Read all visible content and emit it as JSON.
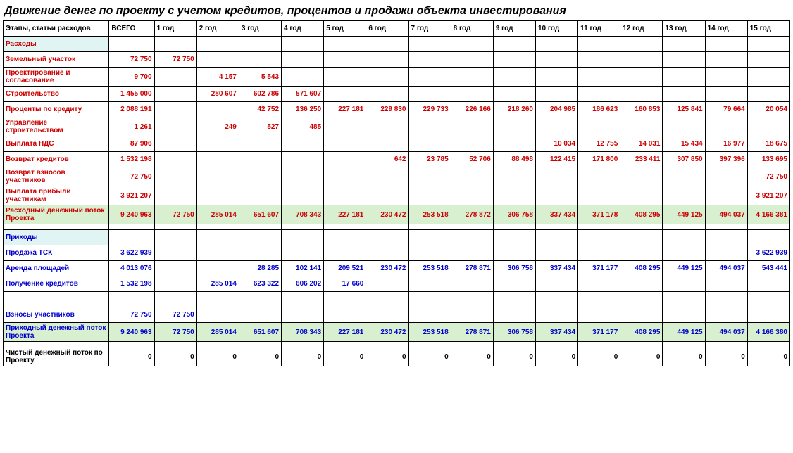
{
  "title": "Движение денег по проекту с учетом кредитов, процентов и продажи объекта инвестирования",
  "headers": [
    "Этапы, статьи расходов",
    "ВСЕГО",
    "1 год",
    "2 год",
    "3 год",
    "4 год",
    "5 год",
    "6 год",
    "7 год",
    "8 год",
    "9 год",
    "10 год",
    "11 год",
    "12 год",
    "13 год",
    "14 год",
    "15 год"
  ],
  "colors": {
    "expense": "#cc0000",
    "income": "#0000cc",
    "net": "#000000",
    "section_bg": "#e0f4f4",
    "total_bg": "#d8f0d0",
    "border": "#000000"
  },
  "rows": [
    {
      "type": "section",
      "color": "red",
      "label": "Расходы",
      "cells": [
        "",
        "",
        "",
        "",
        "",
        "",
        "",
        "",
        "",
        "",
        "",
        "",
        "",
        "",
        "",
        ""
      ]
    },
    {
      "type": "data",
      "color": "red",
      "label": "Земельный участок",
      "cells": [
        "72 750",
        "72 750",
        "",
        "",
        "",
        "",
        "",
        "",
        "",
        "",
        "",
        "",
        "",
        "",
        "",
        ""
      ]
    },
    {
      "type": "data",
      "color": "red",
      "label": "Проектирование и согласование",
      "cells": [
        "9 700",
        "",
        "4 157",
        "5 543",
        "",
        "",
        "",
        "",
        "",
        "",
        "",
        "",
        "",
        "",
        "",
        ""
      ]
    },
    {
      "type": "data",
      "color": "red",
      "label": "Строительство",
      "cells": [
        "1 455 000",
        "",
        "280 607",
        "602 786",
        "571 607",
        "",
        "",
        "",
        "",
        "",
        "",
        "",
        "",
        "",
        "",
        ""
      ]
    },
    {
      "type": "data",
      "color": "red",
      "label": "Проценты по кредиту",
      "cells": [
        "2 088 191",
        "",
        "",
        "42 752",
        "136 250",
        "227 181",
        "229 830",
        "229 733",
        "226 166",
        "218 260",
        "204 985",
        "186 623",
        "160 853",
        "125 841",
        "79 664",
        "20 054"
      ]
    },
    {
      "type": "data",
      "color": "red",
      "label": "Управление строительством",
      "cells": [
        "1 261",
        "",
        "249",
        "527",
        "485",
        "",
        "",
        "",
        "",
        "",
        "",
        "",
        "",
        "",
        "",
        ""
      ]
    },
    {
      "type": "data",
      "color": "red",
      "label": "Выплата НДС",
      "cells": [
        "87 906",
        "",
        "",
        "",
        "",
        "",
        "",
        "",
        "",
        "",
        "10 034",
        "12 755",
        "14 031",
        "15 434",
        "16 977",
        "18 675"
      ]
    },
    {
      "type": "data",
      "color": "red",
      "label": "Возврат кредитов",
      "cells": [
        "1 532 198",
        "",
        "",
        "",
        "",
        "",
        "642",
        "23 785",
        "52 706",
        "88 498",
        "122 415",
        "171 800",
        "233 411",
        "307 850",
        "397 396",
        "133 695"
      ]
    },
    {
      "type": "data",
      "color": "red",
      "label": "Возврат взносов участников",
      "cells": [
        "72 750",
        "",
        "",
        "",
        "",
        "",
        "",
        "",
        "",
        "",
        "",
        "",
        "",
        "",
        "",
        "72 750"
      ]
    },
    {
      "type": "data",
      "color": "red",
      "label": "Выплата прибыли участникам",
      "cells": [
        "3 921 207",
        "",
        "",
        "",
        "",
        "",
        "",
        "",
        "",
        "",
        "",
        "",
        "",
        "",
        "",
        "3 921 207"
      ]
    },
    {
      "type": "total",
      "color": "red",
      "label": "Расходный денежный поток Проекта",
      "cells": [
        "9 240 963",
        "72 750",
        "285 014",
        "651 607",
        "708 343",
        "227 181",
        "230 472",
        "253 518",
        "278 872",
        "306 758",
        "337 434",
        "371 178",
        "408 295",
        "449 125",
        "494 037",
        "4 166 381"
      ]
    },
    {
      "type": "spacer"
    },
    {
      "type": "section",
      "color": "blue",
      "label": "Приходы",
      "cells": [
        "",
        "",
        "",
        "",
        "",
        "",
        "",
        "",
        "",
        "",
        "",
        "",
        "",
        "",
        "",
        ""
      ]
    },
    {
      "type": "data",
      "color": "blue",
      "label": "Продажа  ТСК",
      "cells": [
        "3 622 939",
        "",
        "",
        "",
        "",
        "",
        "",
        "",
        "",
        "",
        "",
        "",
        "",
        "",
        "",
        "3 622 939"
      ]
    },
    {
      "type": "data",
      "color": "blue",
      "label": "Аренда площадей",
      "cells": [
        "4 013 076",
        "",
        "",
        "28 285",
        "102 141",
        "209 521",
        "230 472",
        "253 518",
        "278 871",
        "306 758",
        "337 434",
        "371 177",
        "408 295",
        "449 125",
        "494 037",
        "543 441"
      ]
    },
    {
      "type": "data",
      "color": "blue",
      "label": "Получение кредитов",
      "cells": [
        "1 532 198",
        "",
        "285 014",
        "623 322",
        "606 202",
        "17 660",
        "",
        "",
        "",
        "",
        "",
        "",
        "",
        "",
        "",
        ""
      ]
    },
    {
      "type": "data",
      "color": "blue",
      "label": "",
      "cells": [
        "",
        "",
        "",
        "",
        "",
        "",
        "",
        "",
        "",
        "",
        "",
        "",
        "",
        "",
        "",
        ""
      ]
    },
    {
      "type": "data",
      "color": "blue",
      "label": "Взносы участников",
      "cells": [
        "72 750",
        "72 750",
        "",
        "",
        "",
        "",
        "",
        "",
        "",
        "",
        "",
        "",
        "",
        "",
        "",
        ""
      ]
    },
    {
      "type": "total",
      "color": "blue",
      "label": "Приходный денежный поток Проекта",
      "cells": [
        "9 240 963",
        "72 750",
        "285 014",
        "651 607",
        "708 343",
        "227 181",
        "230 472",
        "253 518",
        "278 871",
        "306 758",
        "337 434",
        "371 177",
        "408 295",
        "449 125",
        "494 037",
        "4 166 380"
      ]
    },
    {
      "type": "spacer"
    },
    {
      "type": "data",
      "color": "black",
      "label": "Чистый денежный поток по Проекту",
      "cells": [
        "0",
        "0",
        "0",
        "0",
        "0",
        "0",
        "0",
        "0",
        "0",
        "0",
        "0",
        "0",
        "0",
        "0",
        "0",
        "0"
      ]
    }
  ]
}
